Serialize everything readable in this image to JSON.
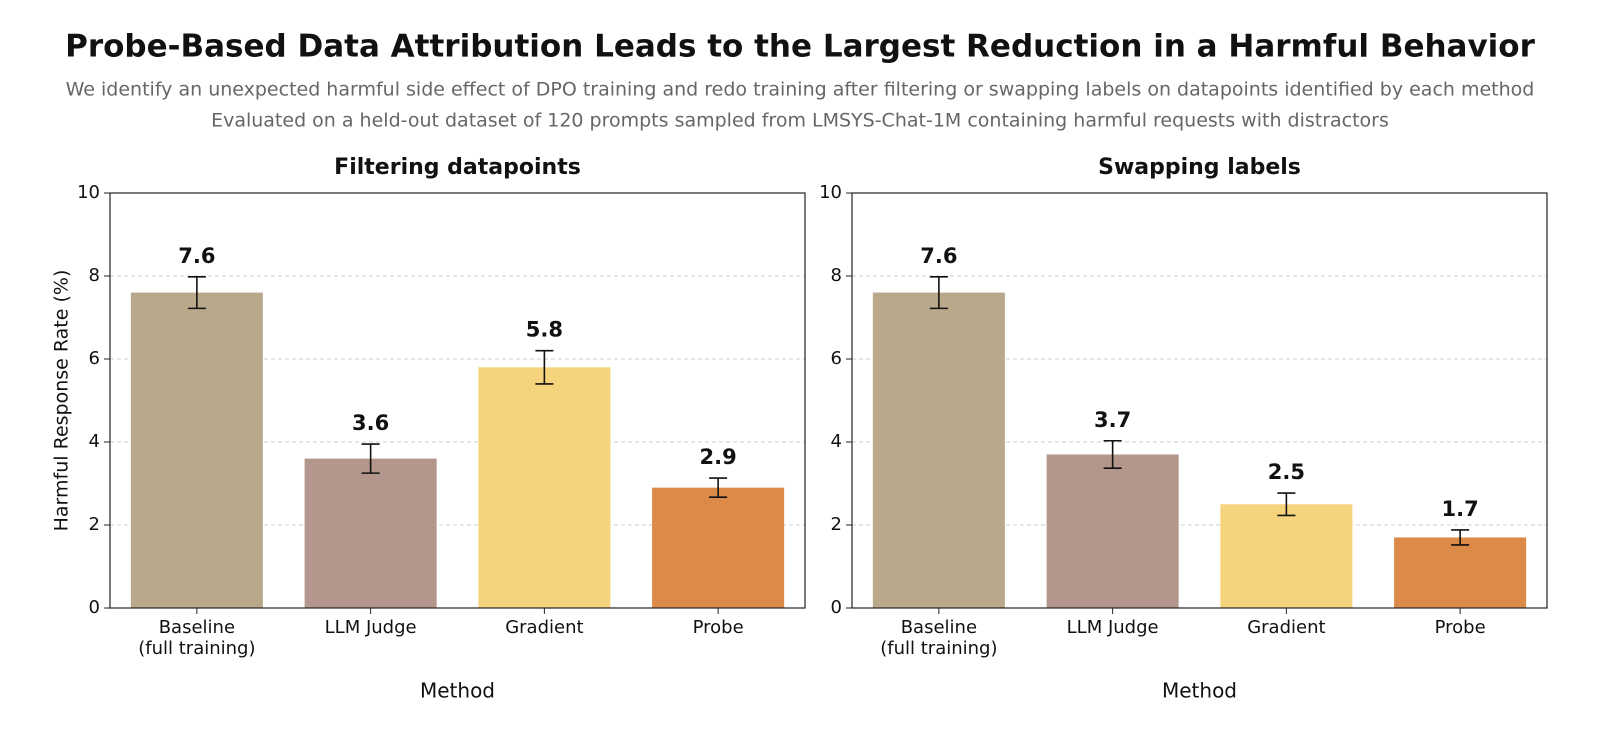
{
  "header": {
    "title": "Probe-Based Data Attribution Leads to the Largest Reduction in a Harmful Behavior",
    "subtitle": [
      "We identify an unexpected harmful side effect of DPO training and redo training after filtering or swapping labels on datapoints identified by each method",
      "Evaluated on a held-out dataset of 120 prompts sampled from LMSYS-Chat-1M containing harmful requests with distractors"
    ]
  },
  "chart_data": [
    {
      "type": "bar",
      "title": "Filtering datapoints",
      "xlabel": "Method",
      "ylabel": "Harmful Response Rate (%)",
      "categories": [
        "Baseline\n(full training)",
        "LLM Judge",
        "Gradient",
        "Probe"
      ],
      "values": [
        7.6,
        3.6,
        5.8,
        2.9
      ],
      "errors": [
        0.38,
        0.35,
        0.4,
        0.23
      ],
      "colors": [
        "#b9a98a",
        "#b4978c",
        "#f6d47e",
        "#db8a48"
      ],
      "ylim": [
        0,
        10
      ],
      "yticks": [
        0,
        2,
        4,
        6,
        8,
        10
      ],
      "grid": true
    },
    {
      "type": "bar",
      "title": "Swapping labels",
      "xlabel": "Method",
      "categories": [
        "Baseline\n(full training)",
        "LLM Judge",
        "Gradient",
        "Probe"
      ],
      "values": [
        7.6,
        3.7,
        2.5,
        1.7
      ],
      "errors": [
        0.38,
        0.33,
        0.27,
        0.18
      ],
      "colors": [
        "#b9a98a",
        "#b4978c",
        "#f6d47e",
        "#db8a48"
      ],
      "ylim": [
        0,
        10
      ],
      "yticks": [
        0,
        2,
        4,
        6,
        8,
        10
      ],
      "grid": true
    }
  ]
}
